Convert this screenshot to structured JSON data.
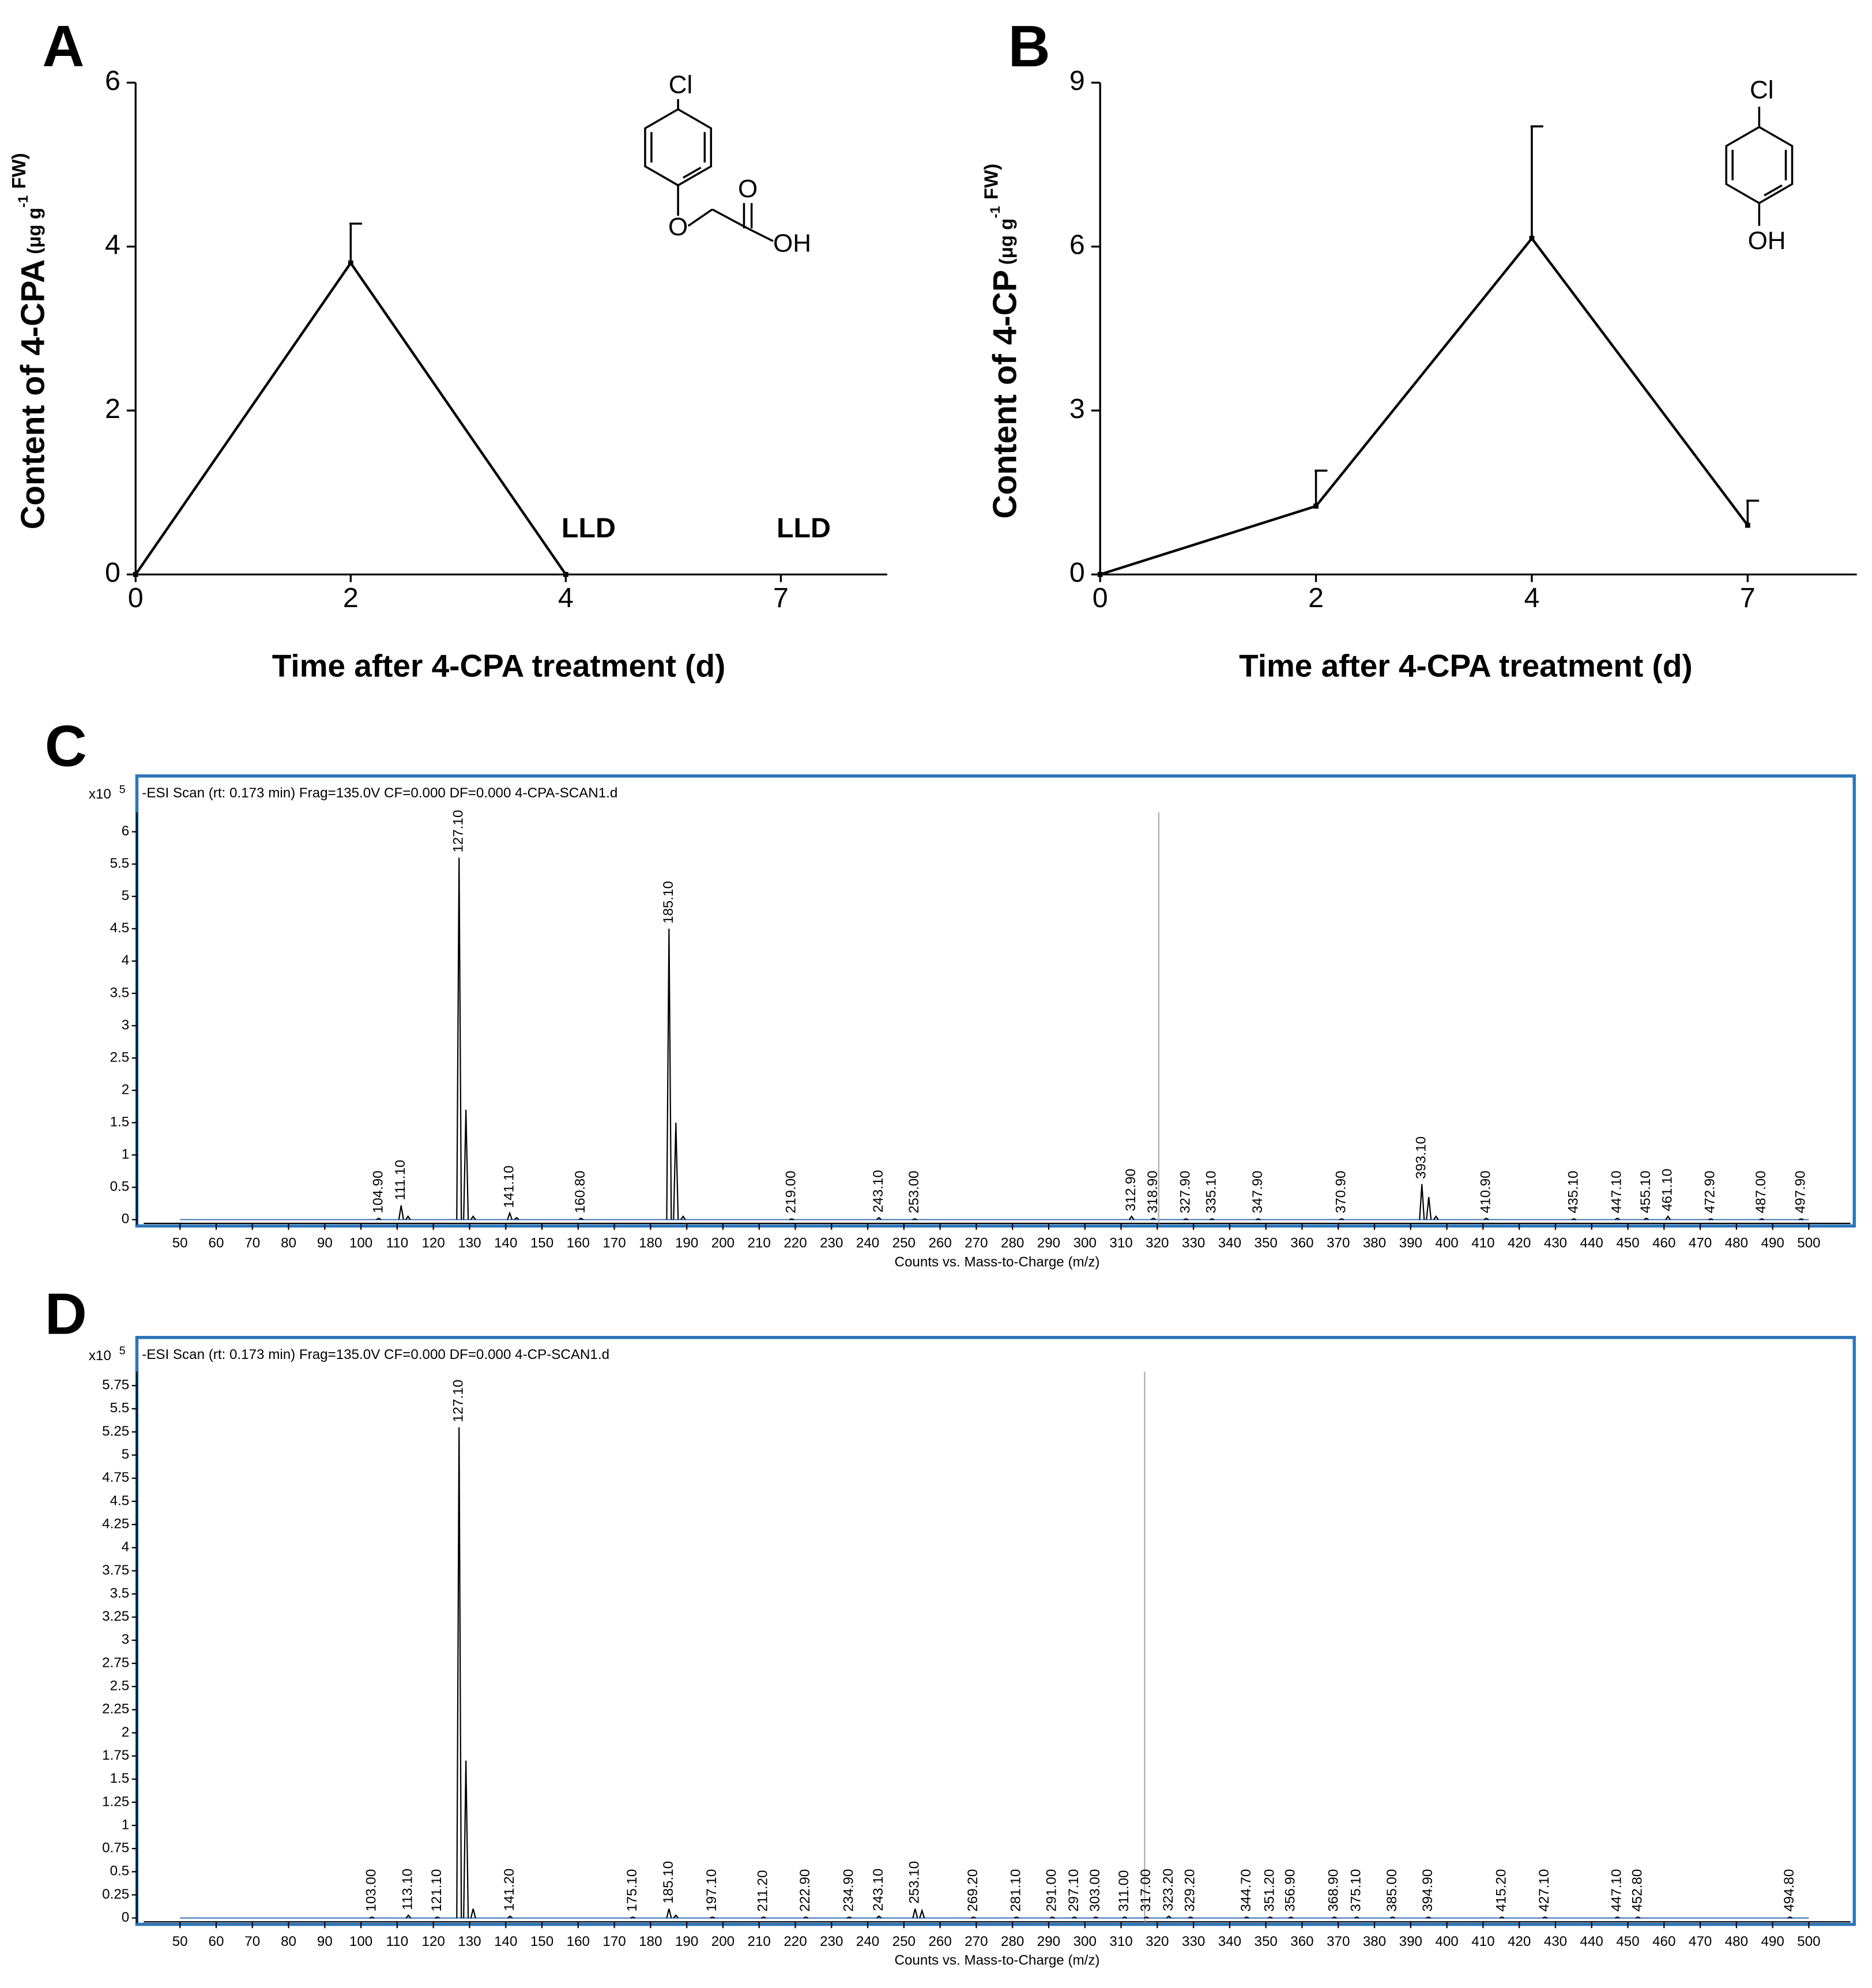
{
  "chart_data": [
    {
      "type": "line",
      "panel_label": "A",
      "categories": [
        "0",
        "2",
        "4",
        "7"
      ],
      "values": [
        0,
        3.8,
        0,
        null
      ],
      "errors": [
        null,
        0.48,
        null,
        null
      ],
      "ylim": [
        0,
        6
      ],
      "yticks": [
        0,
        2,
        4,
        6
      ],
      "xlabel": "Time after 4-CPA treatment (d)",
      "ylabel": "Content of 4-CPA",
      "ylabel_unit": "(μg g",
      "ylabel_sup": "-1",
      "ylabel_unit_end": "FW)",
      "annotations": [
        "LLD",
        "LLD"
      ],
      "structure_labels": [
        "Cl",
        "O",
        "O",
        "OH"
      ],
      "color": "#000000"
    },
    {
      "type": "line",
      "panel_label": "B",
      "categories": [
        "0",
        "2",
        "4",
        "7"
      ],
      "values": [
        0,
        1.25,
        6.15,
        0.9
      ],
      "errors": [
        null,
        0.65,
        2.05,
        0.45
      ],
      "ylim": [
        0,
        9
      ],
      "yticks": [
        0,
        3,
        6,
        9
      ],
      "xlabel": "Time after 4-CPA treatment (d)",
      "ylabel": "Content of 4-CP",
      "ylabel_unit": "(μg g",
      "ylabel_sup": "-1",
      "ylabel_unit_end": "FW)",
      "structure_labels": [
        "Cl",
        "OH"
      ],
      "color": "#000000"
    },
    {
      "type": "spectrum",
      "panel_label": "C",
      "header": "-ESI Scan (rt: 0.173 min) Frag=135.0V CF=0.000 DF=0.000 4-CPA-SCAN1.d",
      "y_multiplier": "x10",
      "y_exponent": "5",
      "xlabel": "Counts vs. Mass-to-Charge (m/z)",
      "xlim": [
        40,
        511.5
      ],
      "ylim": [
        0,
        6.3
      ],
      "cursor_x": 320.4,
      "xticks": [
        50,
        60,
        70,
        80,
        90,
        100,
        110,
        120,
        130,
        140,
        150,
        160,
        170,
        180,
        190,
        200,
        210,
        220,
        230,
        240,
        250,
        260,
        270,
        280,
        290,
        300,
        310,
        320,
        330,
        340,
        350,
        360,
        370,
        380,
        390,
        400,
        410,
        420,
        430,
        440,
        450,
        460,
        470,
        480,
        490,
        500
      ],
      "yticks": [
        0,
        0.5,
        1,
        1.5,
        2,
        2.5,
        3,
        3.5,
        4,
        4.5,
        5,
        5.5,
        6
      ],
      "x": [
        104.9,
        111.1,
        113,
        127.1,
        129,
        131,
        141.1,
        143,
        160.8,
        185.1,
        187,
        189,
        219,
        243.1,
        253,
        312.9,
        318.9,
        327.9,
        335.1,
        347.9,
        370.9,
        393.1,
        395,
        397,
        410.9,
        435.1,
        447.1,
        455.1,
        461.1,
        472.9,
        487,
        497.9
      ],
      "values": [
        0.02,
        0.22,
        0.05,
        5.6,
        1.7,
        0.05,
        0.1,
        0.03,
        0.02,
        4.5,
        1.5,
        0.05,
        0.01,
        0.03,
        0.01,
        0.05,
        0.02,
        0.01,
        0.01,
        0.01,
        0.01,
        0.55,
        0.35,
        0.05,
        0.02,
        0.01,
        0.02,
        0.02,
        0.05,
        0.01,
        0.01,
        0.01
      ],
      "x_labels": [
        "104.90",
        "111.10",
        null,
        "127.10",
        null,
        null,
        "141.10",
        null,
        "160.80",
        "185.10",
        null,
        null,
        "219.00",
        "243.10",
        "253.00",
        "312.90",
        "318.90",
        "327.90",
        "335.10",
        "347.90",
        "370.90",
        "393.10",
        null,
        null,
        "410.90",
        "435.10",
        "447.10",
        "455.10",
        "461.10",
        "472.90",
        "487.00",
        "497.90"
      ],
      "color": "#000000"
    },
    {
      "type": "spectrum",
      "panel_label": "D",
      "header": "-ESI Scan (rt: 0.173 min) Frag=135.0V CF=0.000 DF=0.000 4-CP-SCAN1.d",
      "y_multiplier": "x10",
      "y_exponent": "5",
      "xlabel": "Counts vs. Mass-to-Charge (m/z)",
      "xlim": [
        40,
        511.5
      ],
      "ylim": [
        0,
        5.9
      ],
      "cursor_x": 316.5,
      "xticks": [
        50,
        60,
        70,
        80,
        90,
        100,
        110,
        120,
        130,
        140,
        150,
        160,
        170,
        180,
        190,
        200,
        210,
        220,
        230,
        240,
        250,
        260,
        270,
        280,
        290,
        300,
        310,
        320,
        330,
        340,
        350,
        360,
        370,
        380,
        390,
        400,
        410,
        420,
        430,
        440,
        450,
        460,
        470,
        480,
        490,
        500
      ],
      "yticks": [
        0,
        0.25,
        0.5,
        0.75,
        1,
        1.25,
        1.5,
        1.75,
        2,
        2.25,
        2.5,
        2.75,
        3,
        3.25,
        3.5,
        3.75,
        4,
        4.25,
        4.5,
        4.75,
        5,
        5.25,
        5.5,
        5.75
      ],
      "x": [
        103,
        113.1,
        121.1,
        127.1,
        129,
        131,
        141.2,
        175.1,
        185.1,
        187,
        197.1,
        211.2,
        222.9,
        234.9,
        243.1,
        253.1,
        255,
        269.2,
        281.1,
        291,
        297.1,
        303,
        311,
        317,
        323.2,
        329.2,
        344.7,
        351.2,
        356.9,
        368.9,
        375.1,
        385,
        394.9,
        415.2,
        427.1,
        447.1,
        452.8,
        494.8
      ],
      "values": [
        0.01,
        0.03,
        0.01,
        5.3,
        1.7,
        0.1,
        0.02,
        0.01,
        0.1,
        0.03,
        0.01,
        0.01,
        0.01,
        0.01,
        0.02,
        0.1,
        0.08,
        0.01,
        0.01,
        0.01,
        0.01,
        0.01,
        0.01,
        0.01,
        0.02,
        0.01,
        0.01,
        0.01,
        0.01,
        0.01,
        0.01,
        0.01,
        0.01,
        0.01,
        0.01,
        0.01,
        0.01,
        0.01
      ],
      "x_labels": [
        "103.00",
        "113.10",
        "121.10",
        "127.10",
        null,
        null,
        "141.20",
        "175.10",
        "185.10",
        null,
        "197.10",
        "211.20",
        "222.90",
        "234.90",
        "243.10",
        "253.10",
        null,
        "269.20",
        "281.10",
        "291.00",
        "297.10",
        "303.00",
        "311.00",
        "317.00",
        "323.20",
        "329.20",
        "344.70",
        "351.20",
        "356.90",
        "368.90",
        "375.10",
        "385.00",
        "394.90",
        "415.20",
        "427.10",
        "447.10",
        "452.80",
        "494.80"
      ],
      "color": "#000000"
    }
  ]
}
